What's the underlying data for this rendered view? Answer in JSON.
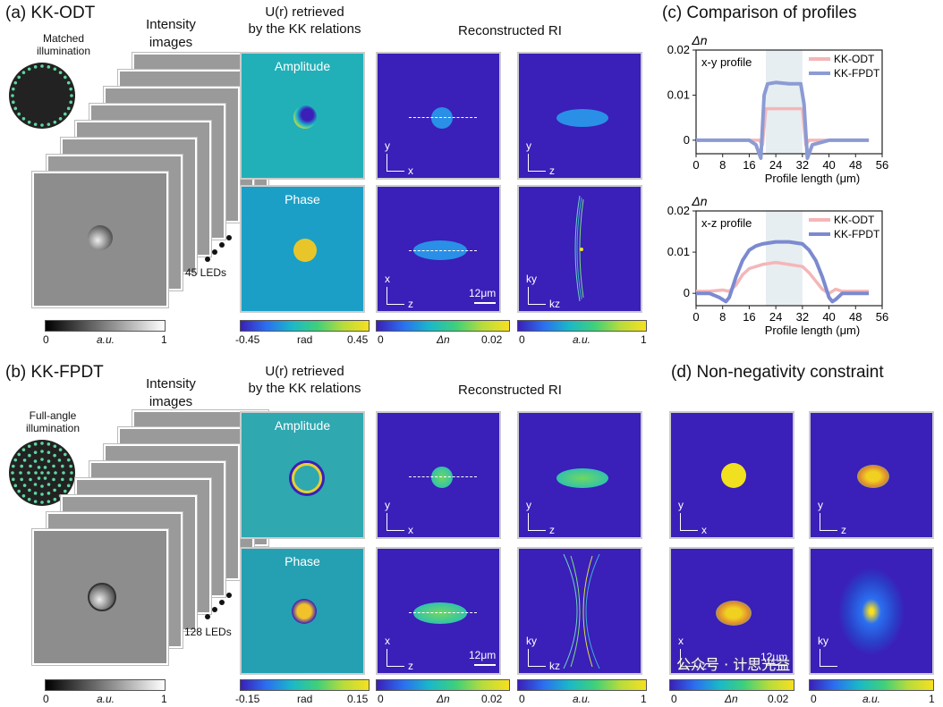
{
  "panel_a": {
    "title": "(a) KK-ODT",
    "illum_label": [
      "Matched",
      "illumination"
    ],
    "intensity_label": [
      "Intensity",
      "images"
    ],
    "led_count": "45 LEDs",
    "retrieved_label": [
      "U(r) retrieved",
      "by the KK relations"
    ],
    "recon_label": "Reconstructed RI",
    "amp": "Amplitude",
    "phase": "Phase",
    "gray_bar": {
      "min": "0",
      "mid": "a.u.",
      "max": "1"
    },
    "phase_bar": {
      "min": "-0.45",
      "mid": "rad",
      "max": "0.45"
    },
    "dn_bar": {
      "min": "0",
      "mid": "Δn",
      "max": "0.02"
    },
    "au_bar": {
      "min": "0",
      "mid": "a.u.",
      "max": "1"
    },
    "scale": "12μm",
    "axes": {
      "y": "y",
      "x": "x",
      "z": "z",
      "ky": "ky",
      "kz": "kz"
    }
  },
  "panel_b": {
    "title": "(b) KK-FPDT",
    "illum_label": [
      "Full-angle",
      "illumination"
    ],
    "intensity_label": [
      "Intensity",
      "images"
    ],
    "led_count": "128 LEDs",
    "retrieved_label": [
      "U(r) retrieved",
      "by the KK relations"
    ],
    "recon_label": "Reconstructed RI",
    "amp": "Amplitude",
    "phase": "Phase",
    "gray_bar": {
      "min": "0",
      "mid": "a.u.",
      "max": "1"
    },
    "phase_bar": {
      "min": "-0.15",
      "mid": "rad",
      "max": "0.15"
    },
    "dn_bar": {
      "min": "0",
      "mid": "Δn",
      "max": "0.02"
    },
    "au_bar": {
      "min": "0",
      "mid": "a.u.",
      "max": "1"
    },
    "scale": "12μm"
  },
  "panel_c": {
    "title": "(c) Comparison of profiles"
  },
  "panel_d": {
    "title": "(d) Non-negativity constraint",
    "dn_bar": {
      "min": "0",
      "mid": "Δn",
      "max": "0.02"
    },
    "au_bar": {
      "min": "0",
      "mid": "a.u.",
      "max": "1"
    },
    "scale": "12μm",
    "watermark": "公众号 · 计思光益"
  },
  "chart_data": [
    {
      "type": "line",
      "title": "x-y profile",
      "ylabel": "Δn",
      "xlabel": "Profile length (μm)",
      "xticks": [
        0,
        8,
        16,
        24,
        32,
        40,
        48,
        56
      ],
      "yticks": [
        "0",
        "0.01",
        "0.02"
      ],
      "xlim": [
        0,
        56
      ],
      "ylim": [
        -0.003,
        0.02
      ],
      "highlight": [
        21,
        32
      ],
      "series": [
        {
          "name": "KK-ODT",
          "color": "#f4b6b8",
          "x": [
            0,
            8,
            16,
            19,
            20,
            21,
            32,
            33,
            34,
            40,
            48,
            52
          ],
          "y": [
            0,
            0,
            0,
            0,
            -0.001,
            0.007,
            0.007,
            -0.001,
            0,
            0,
            0,
            0
          ]
        },
        {
          "name": "KK-FPDT",
          "color": "#8c9bd4",
          "x": [
            0,
            8,
            16,
            18,
            19.5,
            20.5,
            21.5,
            24,
            28,
            31.5,
            32.5,
            33.5,
            35,
            40,
            48,
            52
          ],
          "y": [
            0,
            0,
            0,
            -0.001,
            -0.004,
            0.01,
            0.0125,
            0.0128,
            0.0125,
            0.0125,
            0.008,
            -0.004,
            -0.001,
            0,
            0,
            0
          ]
        }
      ]
    },
    {
      "type": "line",
      "title": "x-z profile",
      "ylabel": "Δn",
      "xlabel": "Profile length (μm)",
      "xticks": [
        0,
        8,
        16,
        24,
        32,
        40,
        48,
        56
      ],
      "yticks": [
        "0",
        "0.01",
        "0.02"
      ],
      "xlim": [
        0,
        56
      ],
      "ylim": [
        -0.003,
        0.02
      ],
      "highlight": [
        21,
        32
      ],
      "series": [
        {
          "name": "KK-ODT",
          "color": "#f4b6b8",
          "x": [
            0,
            4,
            8,
            10,
            12,
            14,
            16,
            18,
            20,
            24,
            28,
            32,
            34,
            36,
            38,
            40,
            42,
            44,
            48,
            52
          ],
          "y": [
            0.0005,
            0.0005,
            0.0008,
            0.0005,
            0.002,
            0.0045,
            0.006,
            0.0065,
            0.007,
            0.0075,
            0.007,
            0.0065,
            0.005,
            0.003,
            0.001,
            0,
            0.001,
            0.0005,
            0.0005,
            0.0005
          ]
        },
        {
          "name": "KK-FPDT",
          "color": "#7b8ad0",
          "x": [
            0,
            4,
            7,
            9,
            10,
            12,
            14,
            16,
            18,
            20,
            24,
            28,
            32,
            34,
            36,
            38,
            40,
            41,
            42,
            44,
            48,
            52
          ],
          "y": [
            0,
            0,
            -0.001,
            -0.002,
            -0.001,
            0.004,
            0.008,
            0.0105,
            0.0115,
            0.012,
            0.0125,
            0.0125,
            0.012,
            0.0105,
            0.008,
            0.004,
            -0.001,
            -0.002,
            -0.0015,
            0,
            0,
            0
          ]
        }
      ]
    }
  ]
}
